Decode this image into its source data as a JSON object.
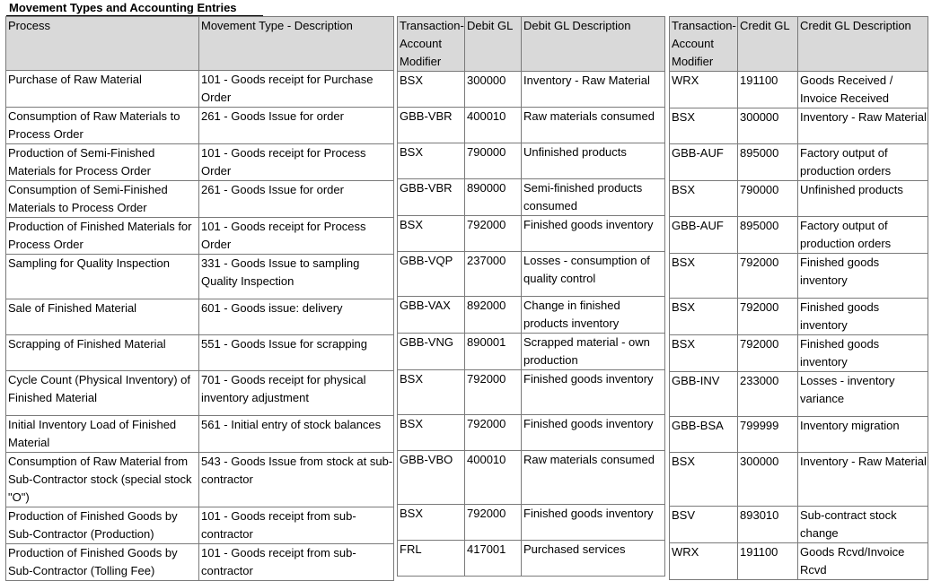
{
  "title": "Movement Types and Accounting Entries",
  "headers": {
    "process": "Process",
    "movement_type": "Movement Type - Description",
    "debit_modifier": "Transaction-Account Modifier",
    "debit_gl": "Debit GL",
    "debit_desc": "Debit GL Description",
    "credit_modifier": "Transaction-Account Modifier",
    "credit_gl": "Credit GL",
    "credit_desc": "Credit GL Description"
  },
  "rows": [
    {
      "process": "Purchase of Raw Material",
      "movement_type": "101 - Goods receipt for Purchase Order",
      "debit_modifier": "BSX",
      "debit_gl": "300000",
      "debit_desc": "Inventory - Raw Material",
      "credit_modifier": "WRX",
      "credit_gl": "191100",
      "credit_desc": "Goods Received / Invoice Received"
    },
    {
      "process": "Consumption of Raw Materials to Process Order",
      "movement_type": "261 - Goods Issue for order",
      "debit_modifier": "GBB-VBR",
      "debit_gl": "400010",
      "debit_desc": "Raw materials consumed",
      "credit_modifier": "BSX",
      "credit_gl": "300000",
      "credit_desc": "Inventory - Raw Material"
    },
    {
      "process": "Production of Semi-Finished Materials for Process Order",
      "movement_type": "101 - Goods receipt for Process Order",
      "debit_modifier": "BSX",
      "debit_gl": "790000",
      "debit_desc": "Unfinished products",
      "credit_modifier": "GBB-AUF",
      "credit_gl": "895000",
      "credit_desc": "Factory output of production orders"
    },
    {
      "process": "Consumption of Semi-Finished Materials to Process Order",
      "movement_type": "261 - Goods Issue for order",
      "debit_modifier": "GBB-VBR",
      "debit_gl": "890000",
      "debit_desc": "Semi-finished products consumed",
      "credit_modifier": "BSX",
      "credit_gl": "790000",
      "credit_desc": "Unfinished products"
    },
    {
      "process": "Production of Finished Materials for Process Order",
      "movement_type": "101 - Goods receipt for Process Order",
      "debit_modifier": "BSX",
      "debit_gl": "792000",
      "debit_desc": "Finished goods inventory",
      "credit_modifier": "GBB-AUF",
      "credit_gl": "895000",
      "credit_desc": "Factory output of production orders"
    },
    {
      "process": "Sampling for Quality Inspection",
      "movement_type": "331 - Goods Issue to sampling Quality Inspection",
      "debit_modifier": "GBB-VQP",
      "debit_gl": "237000",
      "debit_desc": "Losses - consumption of quality control",
      "credit_modifier": "BSX",
      "credit_gl": "792000",
      "credit_desc": "Finished goods inventory"
    },
    {
      "process": "Sale of Finished Material",
      "movement_type": "601 - Goods issue: delivery",
      "debit_modifier": "GBB-VAX",
      "debit_gl": "892000",
      "debit_desc": "Change in finished products inventory",
      "credit_modifier": "BSX",
      "credit_gl": "792000",
      "credit_desc": "Finished goods inventory"
    },
    {
      "process": "Scrapping of Finished Material",
      "movement_type": "551 - Goods Issue for scrapping",
      "debit_modifier": "GBB-VNG",
      "debit_gl": "890001",
      "debit_desc": "Scrapped material - own production",
      "credit_modifier": "BSX",
      "credit_gl": "792000",
      "credit_desc": "Finished goods inventory"
    },
    {
      "process": "Cycle Count (Physical Inventory) of Finished Material",
      "movement_type": "701 - Goods receipt for physical inventory adjustment",
      "debit_modifier": "BSX",
      "debit_gl": "792000",
      "debit_desc": "Finished goods inventory",
      "credit_modifier": "GBB-INV",
      "credit_gl": "233000",
      "credit_desc": "Losses - inventory variance"
    },
    {
      "process": "Initial Inventory Load of Finished Material",
      "movement_type": "561 - Initial entry of stock balances",
      "debit_modifier": "BSX",
      "debit_gl": "792000",
      "debit_desc": "Finished goods inventory",
      "credit_modifier": "GBB-BSA",
      "credit_gl": "799999",
      "credit_desc": "Inventory migration"
    },
    {
      "process": "Consumption of Raw Material from Sub-Contractor stock (special stock \"O\")",
      "movement_type": "543 - Goods Issue from stock at sub-contractor",
      "debit_modifier": "GBB-VBO",
      "debit_gl": "400010",
      "debit_desc": "Raw materials consumed",
      "credit_modifier": "BSX",
      "credit_gl": "300000",
      "credit_desc": "Inventory - Raw Material"
    },
    {
      "process": "Production of Finished Goods by Sub-Contractor (Production)",
      "movement_type": "101 - Goods receipt from sub-contractor",
      "debit_modifier": "BSX",
      "debit_gl": "792000",
      "debit_desc": "Finished goods inventory",
      "credit_modifier": "BSV",
      "credit_gl": "893010",
      "credit_desc": "Sub-contract stock change"
    },
    {
      "process": "Production of Finished Goods by Sub-Contractor (Tolling Fee)",
      "movement_type": "101 - Goods receipt from sub-contractor",
      "debit_modifier": "FRL",
      "debit_gl": "417001",
      "debit_desc": "Purchased services",
      "credit_modifier": "WRX",
      "credit_gl": "191100",
      "credit_desc": "Goods Rcvd/Invoice Rcvd"
    }
  ]
}
